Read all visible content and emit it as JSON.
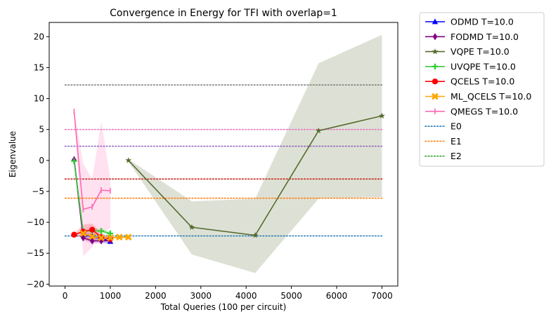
{
  "chart_data": {
    "type": "line",
    "title": "Convergence in Energy for TFI with overlap=1",
    "xlabel": "Total Queries (100 per circuit)",
    "ylabel": "Eigenvalue",
    "xlim": [
      -350,
      7350
    ],
    "ylim": [
      -20.3,
      22.3
    ],
    "xticks": [
      0,
      1000,
      2000,
      3000,
      4000,
      5000,
      6000,
      7000
    ],
    "yticks": [
      -20,
      -15,
      -10,
      -5,
      0,
      5,
      10,
      15,
      20
    ],
    "legend_position": "outside-right",
    "series": [
      {
        "name": "ODMD T=10.0",
        "color": "#0000ff",
        "marker": "triangle",
        "x": [
          200,
          400,
          600,
          800,
          1000
        ],
        "y": [
          0.2,
          -12.0,
          -12.3,
          -12.6,
          -13.1
        ],
        "band_low": [
          0.0,
          -12.4,
          -12.8,
          -13.1,
          -13.6
        ],
        "band_high": [
          0.4,
          -11.6,
          -11.8,
          -12.1,
          -12.6
        ]
      },
      {
        "name": "FODMD T=10.0",
        "color": "#800080",
        "marker": "diamond",
        "x": [
          200,
          400,
          600,
          800,
          1000
        ],
        "y": [
          0.1,
          -12.5,
          -13.0,
          -13.0,
          -12.9
        ],
        "band_low": [
          -0.1,
          -12.9,
          -13.4,
          -13.4,
          -13.3
        ],
        "band_high": [
          0.3,
          -12.1,
          -12.6,
          -12.6,
          -12.5
        ]
      },
      {
        "name": "VQPE T=10.0",
        "color": "#556b2f",
        "marker": "star",
        "x": [
          1400,
          2800,
          4200,
          5600,
          7000
        ],
        "y": [
          0.0,
          -10.8,
          -12.1,
          4.8,
          7.2
        ],
        "band_low": [
          -0.2,
          -15.2,
          -18.2,
          -6.2,
          -5.9
        ],
        "band_high": [
          0.2,
          -6.6,
          -6.2,
          15.7,
          20.3
        ]
      },
      {
        "name": "UVQPE T=10.0",
        "color": "#32cd32",
        "marker": "plus",
        "x": [
          200,
          400,
          600,
          800,
          1000
        ],
        "y": [
          -0.1,
          -11.5,
          -11.3,
          -11.4,
          -11.8
        ],
        "band_low": [
          -0.3,
          -11.9,
          -11.7,
          -11.8,
          -12.2
        ],
        "band_high": [
          0.1,
          -11.1,
          -10.9,
          -11.0,
          -11.4
        ]
      },
      {
        "name": "QCELS T=10.0",
        "color": "#ff0000",
        "marker": "circle",
        "x": [
          200,
          400,
          600,
          800,
          1000
        ],
        "y": [
          -12.0,
          -11.5,
          -11.2,
          -12.4,
          -12.7
        ],
        "band_low": [
          -12.2,
          -12.6,
          -12.2,
          -13.0,
          -13.0
        ],
        "band_high": [
          -11.8,
          -10.4,
          -10.2,
          -11.8,
          -12.4
        ]
      },
      {
        "name": "ML_QCELS T=10.0",
        "color": "#ffa500",
        "marker": "x",
        "x": [
          400,
          600,
          800,
          1000,
          1200,
          1400
        ],
        "y": [
          -11.8,
          -12.3,
          -12.5,
          -12.5,
          -12.4,
          -12.4
        ],
        "band_low": [
          -12.0,
          -12.5,
          -12.7,
          -12.7,
          -12.6,
          -12.6
        ],
        "band_high": [
          -11.6,
          -12.1,
          -12.3,
          -12.3,
          -12.2,
          -12.2
        ]
      },
      {
        "name": "QMEGS T=10.0",
        "color": "#ff69b4",
        "marker": "pipe",
        "x": [
          200,
          400,
          600,
          800,
          1000
        ],
        "y": [
          7.9,
          -7.9,
          -7.5,
          -4.8,
          -4.9
        ],
        "band_low": [
          7.7,
          -15.5,
          -14.0,
          -11.5,
          -11.0
        ],
        "band_high": [
          8.1,
          -0.5,
          -3.0,
          6.3,
          -3.0
        ]
      }
    ],
    "reference_lines": [
      {
        "name": "E0",
        "color": "#1f77b4",
        "y": -12.2
      },
      {
        "name": "E1",
        "color": "#ff7f0e",
        "y": -6.1
      },
      {
        "name": "E2",
        "color": "#2ca02c",
        "y": -3.0
      },
      {
        "name": "",
        "color": "#d62728",
        "y": -3.0
      },
      {
        "name": "",
        "color": "#9467bd",
        "y": 2.3
      },
      {
        "name": "",
        "color": "#e377c2",
        "y": 5.0
      },
      {
        "name": "",
        "color": "#7f7f7f",
        "y": 12.2
      }
    ]
  }
}
